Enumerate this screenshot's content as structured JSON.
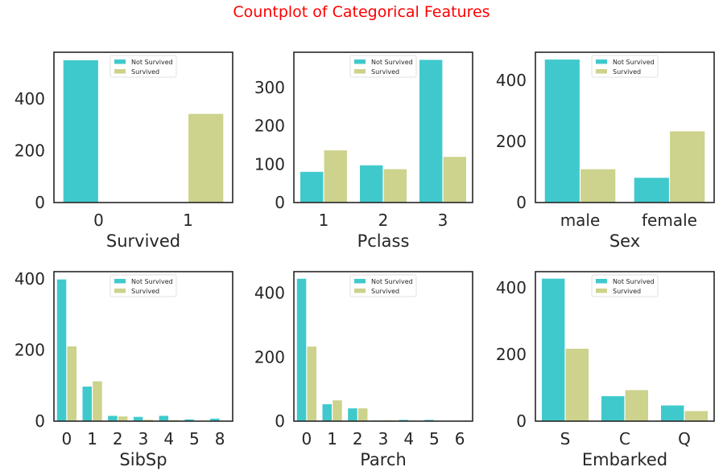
{
  "figure": {
    "title": "Countplot of Categorical Features"
  },
  "colors": {
    "not_survived": "#40c9cc",
    "survived": "#cdd28c",
    "title": "#ff0000",
    "axis": "#262626"
  },
  "chart_data": [
    {
      "type": "bar",
      "xlabel": "Survived",
      "ylabel": "",
      "categories": [
        "0",
        "1"
      ],
      "series": [
        {
          "name": "Not Survived",
          "values": [
            549,
            0
          ]
        },
        {
          "name": "Survived",
          "values": [
            0,
            342
          ]
        }
      ],
      "ylim": [
        0,
        580
      ],
      "yticks": [
        0,
        200,
        400
      ],
      "legend": "top-center",
      "grid": false
    },
    {
      "type": "bar",
      "xlabel": "Pclass",
      "ylabel": "",
      "categories": [
        "1",
        "2",
        "3"
      ],
      "series": [
        {
          "name": "Not Survived",
          "values": [
            80,
            97,
            372
          ]
        },
        {
          "name": "Survived",
          "values": [
            136,
            87,
            119
          ]
        }
      ],
      "ylim": [
        0,
        392
      ],
      "yticks": [
        0,
        100,
        200,
        300
      ],
      "legend": "top-center",
      "grid": false
    },
    {
      "type": "bar",
      "xlabel": "Sex",
      "ylabel": "",
      "categories": [
        "male",
        "female"
      ],
      "series": [
        {
          "name": "Not Survived",
          "values": [
            468,
            81
          ]
        },
        {
          "name": "Survived",
          "values": [
            109,
            233
          ]
        }
      ],
      "ylim": [
        0,
        492
      ],
      "yticks": [
        0,
        200,
        400
      ],
      "legend": "top-center",
      "grid": false
    },
    {
      "type": "bar",
      "xlabel": "SibSp",
      "ylabel": "",
      "categories": [
        "0",
        "1",
        "2",
        "3",
        "4",
        "5",
        "8"
      ],
      "series": [
        {
          "name": "Not Survived",
          "values": [
            398,
            97,
            15,
            12,
            15,
            5,
            7
          ]
        },
        {
          "name": "Survived",
          "values": [
            210,
            112,
            13,
            4,
            3,
            0,
            0
          ]
        }
      ],
      "ylim": [
        0,
        420
      ],
      "yticks": [
        0,
        200,
        400
      ],
      "legend": "top-center",
      "grid": false
    },
    {
      "type": "bar",
      "xlabel": "Parch",
      "ylabel": "",
      "categories": [
        "0",
        "1",
        "2",
        "3",
        "4",
        "5",
        "6"
      ],
      "series": [
        {
          "name": "Not Survived",
          "values": [
            445,
            53,
            40,
            2,
            4,
            4,
            1
          ]
        },
        {
          "name": "Survived",
          "values": [
            233,
            65,
            40,
            3,
            0,
            1,
            0
          ]
        }
      ],
      "ylim": [
        0,
        467
      ],
      "yticks": [
        0,
        200,
        400
      ],
      "legend": "top-center",
      "grid": false
    },
    {
      "type": "bar",
      "xlabel": "Embarked",
      "ylabel": "",
      "categories": [
        "S",
        "C",
        "Q"
      ],
      "series": [
        {
          "name": "Not Survived",
          "values": [
            427,
            75,
            47
          ]
        },
        {
          "name": "Survived",
          "values": [
            217,
            93,
            30
          ]
        }
      ],
      "ylim": [
        0,
        448
      ],
      "yticks": [
        0,
        200,
        400
      ],
      "legend": "top-center",
      "grid": false
    }
  ]
}
